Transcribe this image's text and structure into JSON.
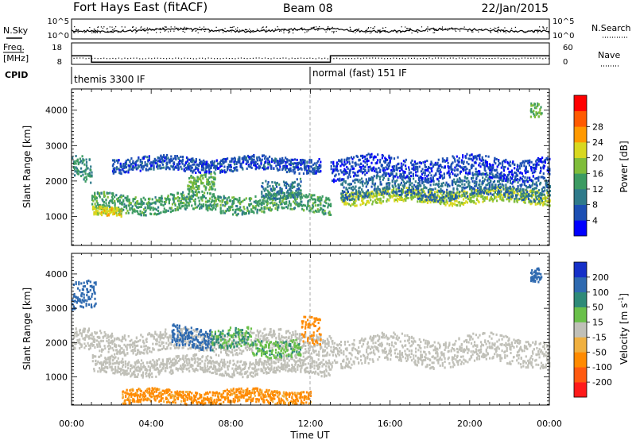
{
  "header": {
    "station": "Fort Hays East (fitACF)",
    "beam": "Beam 08",
    "date": "22/Jan/2015"
  },
  "top_panels": {
    "nsky_label": "N.Sky",
    "nsearch_label": "N.Search",
    "freq_label_line1": "Freq.",
    "freq_label_line2": "[MHz]",
    "nave_label": "Nave",
    "cpid_label": "CPID",
    "noise_left_ticks": [
      "10^5",
      "10^0"
    ],
    "noise_right_ticks": [
      "10^5",
      "10^0"
    ],
    "freq_left_ticks": [
      "18",
      "8"
    ],
    "nave_right_ticks": [
      "60",
      "0"
    ],
    "freq_ylim": [
      8,
      18
    ],
    "nave_ylim": [
      0,
      60
    ],
    "cpid_segments": [
      {
        "label": "themis 3300 IF",
        "start_hr": 0,
        "end_hr": 12
      },
      {
        "label": "normal (fast) 151 IF",
        "start_hr": 12,
        "end_hr": 24
      }
    ],
    "freq_steps": [
      {
        "start_hr": 0,
        "end_hr": 1.0,
        "value": 12
      },
      {
        "start_hr": 1.0,
        "end_hr": 13.0,
        "value": 9
      },
      {
        "start_hr": 13.0,
        "end_hr": 24,
        "value": 12
      }
    ],
    "nave_level": 18
  },
  "axes": {
    "xlabel": "Time UT",
    "xticks": [
      "00:00",
      "04:00",
      "08:00",
      "12:00",
      "16:00",
      "20:00",
      "00:00"
    ],
    "xlim_hours": [
      0,
      24
    ],
    "ylabel": "Slant Range [km]",
    "yticks": [
      "1000",
      "2000",
      "3000",
      "4000"
    ],
    "ylim_km": [
      180,
      4600
    ]
  },
  "power_scale": {
    "label": "Power [dB]",
    "ticks": [
      "28",
      "24",
      "20",
      "16",
      "12",
      "8",
      "4"
    ],
    "colors": [
      "#0000ff",
      "#1c4fb3",
      "#2f7a8a",
      "#3c9b62",
      "#7fbd3a",
      "#d8d820",
      "#ff9900",
      "#ff5a00",
      "#ff0000"
    ]
  },
  "velocity_scale": {
    "label": "Velocity [m s",
    "label_sup": "-1",
    "label_end": "]",
    "ticks": [
      "200",
      "100",
      "50",
      "15",
      "-15",
      "-50",
      "-100",
      "-200"
    ],
    "colors": [
      "#1530c8",
      "#2f6ab0",
      "#2e8a78",
      "#6ac04a",
      "#c0c0b8",
      "#f0b040",
      "#ff8a00",
      "#ff5a10",
      "#ff1a1a"
    ]
  },
  "chart_data": [
    {
      "type": "heatmap",
      "name": "power",
      "x_unit": "hours UT",
      "y_unit": "km",
      "value_unit": "dB",
      "xlim": [
        0,
        24
      ],
      "ylim": [
        180,
        4600
      ],
      "features": [
        {
          "t0": 1.0,
          "t1": 13.0,
          "r_center": 1400,
          "r_width": 250,
          "value": 14
        },
        {
          "t0": 1.0,
          "t1": 2.5,
          "r_center": 1180,
          "r_width": 120,
          "value": 22
        },
        {
          "t0": 2.0,
          "t1": 12.5,
          "r_center": 2500,
          "r_width": 200,
          "value": 6
        },
        {
          "t0": 5.8,
          "t1": 7.2,
          "r_center": 2050,
          "r_width": 250,
          "value": 16
        },
        {
          "t0": 9.5,
          "t1": 11.5,
          "r_center": 1850,
          "r_width": 250,
          "value": 10
        },
        {
          "t0": 13.5,
          "t1": 24.0,
          "r_center": 1600,
          "r_width": 200,
          "value": 20
        },
        {
          "t0": 13.5,
          "t1": 24.0,
          "r_center": 1850,
          "r_width": 300,
          "value": 9
        },
        {
          "t0": 13.0,
          "t1": 24.0,
          "r_center": 2400,
          "r_width": 300,
          "value": 5
        },
        {
          "t0": 0.0,
          "t1": 1.0,
          "r_center": 2300,
          "r_width": 350,
          "value": 12
        },
        {
          "t0": 23.0,
          "t1": 23.6,
          "r_center": 3950,
          "r_width": 200,
          "value": 16
        }
      ]
    },
    {
      "type": "heatmap",
      "name": "velocity",
      "x_unit": "hours UT",
      "y_unit": "km",
      "value_unit": "m/s",
      "xlim": [
        0,
        24
      ],
      "ylim": [
        180,
        4600
      ],
      "features": [
        {
          "t0": 1.0,
          "t1": 13.0,
          "r_center": 1350,
          "r_width": 250,
          "value": 0
        },
        {
          "t0": 0.0,
          "t1": 13.0,
          "r_center": 2050,
          "r_width": 300,
          "value": 0
        },
        {
          "t0": 5.0,
          "t1": 7.0,
          "r_center": 2200,
          "r_width": 300,
          "value": 150
        },
        {
          "t0": 7.0,
          "t1": 9.0,
          "r_center": 2100,
          "r_width": 300,
          "value": 50
        },
        {
          "t0": 9.0,
          "t1": 11.5,
          "r_center": 1900,
          "r_width": 250,
          "value": 40
        },
        {
          "t0": 11.5,
          "t1": 12.5,
          "r_center": 2250,
          "r_width": 400,
          "value": -80
        },
        {
          "t0": 13.0,
          "t1": 24.0,
          "r_center": 1800,
          "r_width": 400,
          "value": 0
        },
        {
          "t0": 0.0,
          "t1": 1.2,
          "r_center": 3300,
          "r_width": 400,
          "value": 180
        },
        {
          "t0": 23.0,
          "t1": 23.6,
          "r_center": 3950,
          "r_width": 200,
          "value": 180
        },
        {
          "t0": 2.5,
          "t1": 12.0,
          "r_center": 450,
          "r_width": 200,
          "value": -60
        }
      ]
    }
  ]
}
